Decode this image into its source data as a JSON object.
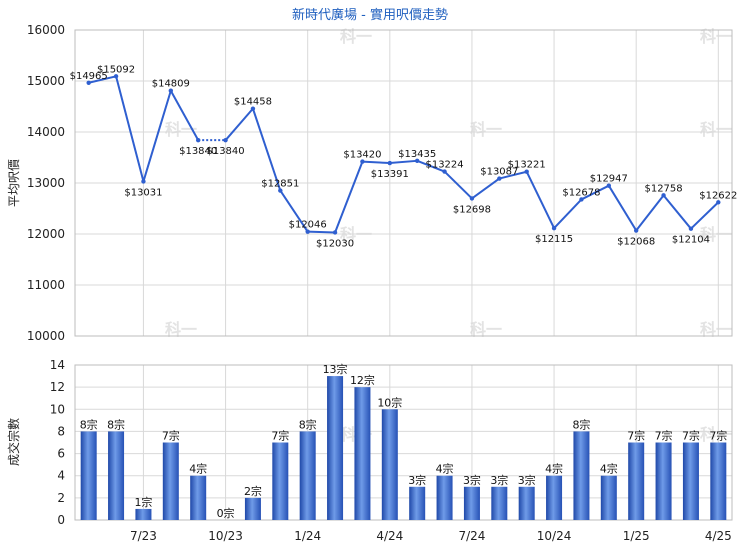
{
  "page": {
    "title": "新時代廣場 - 實用呎價走勢",
    "watermark": "科一"
  },
  "chart_data": [
    {
      "type": "line",
      "title": "新時代廣場 - 實用呎價走勢",
      "ylabel": "平均呎價",
      "ylim": [
        10000,
        16000
      ],
      "yticks": [
        10000,
        11000,
        12000,
        13000,
        14000,
        15000,
        16000
      ],
      "grid": true,
      "color": "#2f5fd0",
      "points": [
        {
          "idx": 0,
          "value": 14965,
          "label": "$14965"
        },
        {
          "idx": 1,
          "value": 15092,
          "label": "$15092"
        },
        {
          "idx": 2,
          "value": 13031,
          "label": "$13031"
        },
        {
          "idx": 3,
          "value": 14809,
          "label": "$14809"
        },
        {
          "idx": 4,
          "value": 13840,
          "label": "$13840"
        },
        {
          "idx": 5,
          "value": 13840,
          "label": "$13840"
        },
        {
          "idx": 6,
          "value": 14458,
          "label": "$14458"
        },
        {
          "idx": 7,
          "value": 12851,
          "label": "$12851"
        },
        {
          "idx": 8,
          "value": 12046,
          "label": "$12046"
        },
        {
          "idx": 9,
          "value": 12030,
          "label": "$12030"
        },
        {
          "idx": 10,
          "value": 13420,
          "label": "$13420"
        },
        {
          "idx": 11,
          "value": 13391,
          "label": "$13391"
        },
        {
          "idx": 12,
          "value": 13435,
          "label": "$13435"
        },
        {
          "idx": 13,
          "value": 13224,
          "label": "$13224"
        },
        {
          "idx": 14,
          "value": 12698,
          "label": "$12698"
        },
        {
          "idx": 15,
          "value": 13087,
          "label": "$13087"
        },
        {
          "idx": 16,
          "value": 13221,
          "label": "$13221"
        },
        {
          "idx": 17,
          "value": 12115,
          "label": "$12115"
        },
        {
          "idx": 18,
          "value": 12678,
          "label": "$12678"
        },
        {
          "idx": 19,
          "value": 12947,
          "label": "$12947"
        },
        {
          "idx": 20,
          "value": 12068,
          "label": "$12068"
        },
        {
          "idx": 21,
          "value": 12758,
          "label": "$12758"
        },
        {
          "idx": 22,
          "value": 12104,
          "label": "$12104"
        },
        {
          "idx": 23,
          "value": 12622,
          "label": "$12622"
        }
      ]
    },
    {
      "type": "bar",
      "ylabel": "成交宗數",
      "ylim": [
        0,
        14
      ],
      "yticks": [
        0,
        2,
        4,
        6,
        8,
        10,
        12,
        14
      ],
      "grid": true,
      "color": "#3566c8",
      "values": [
        8,
        8,
        1,
        7,
        4,
        0,
        2,
        7,
        8,
        13,
        12,
        10,
        3,
        4,
        3,
        3,
        3,
        4,
        8,
        4,
        7,
        7,
        7,
        7
      ],
      "bar_labels": [
        "8宗",
        "8宗",
        "1宗",
        "7宗",
        "4宗",
        "0宗",
        "2宗",
        "7宗",
        "8宗",
        "13宗",
        "12宗",
        "10宗",
        "3宗",
        "4宗",
        "3宗",
        "3宗",
        "3宗",
        "4宗",
        "8宗",
        "4宗",
        "7宗",
        "7宗",
        "7宗",
        "7宗"
      ],
      "x_tick_labels": [
        {
          "idx": 2,
          "label": "7/23"
        },
        {
          "idx": 5,
          "label": "10/23"
        },
        {
          "idx": 8,
          "label": "1/24"
        },
        {
          "idx": 11,
          "label": "4/24"
        },
        {
          "idx": 14,
          "label": "7/24"
        },
        {
          "idx": 17,
          "label": "10/24"
        },
        {
          "idx": 20,
          "label": "1/25"
        },
        {
          "idx": 23,
          "label": "4/25"
        }
      ]
    }
  ]
}
